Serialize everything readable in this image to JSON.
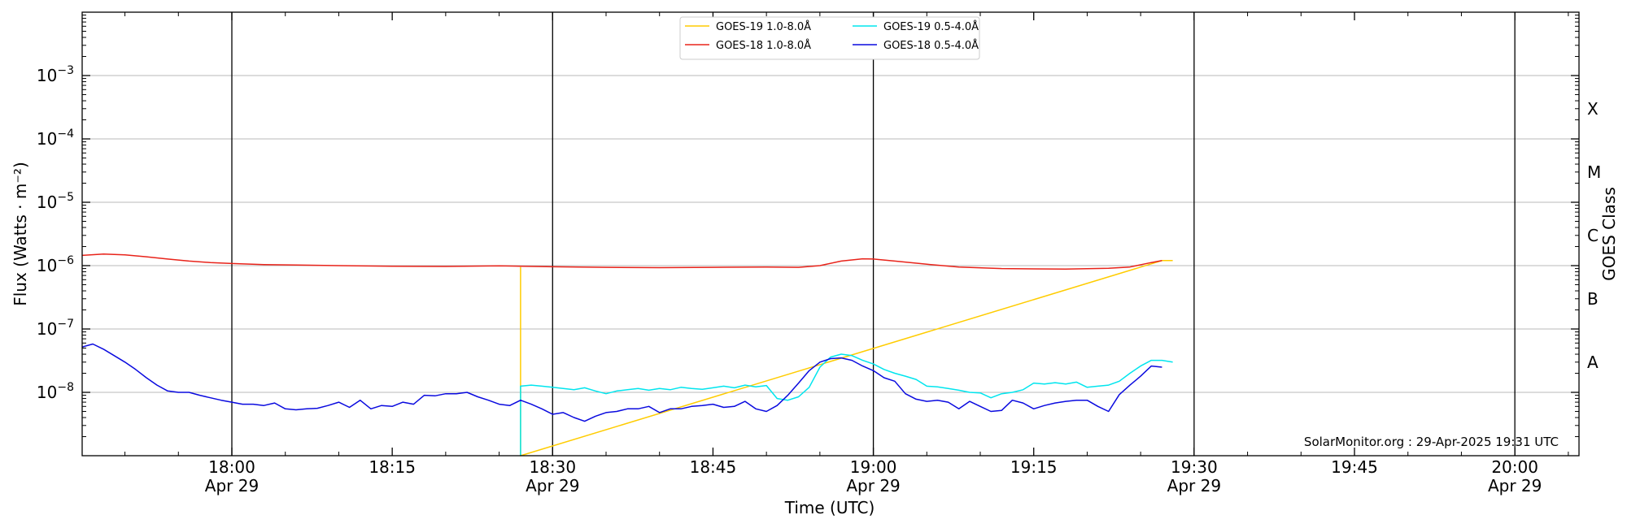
{
  "chart_data": {
    "type": "line",
    "xlabel": "Time (UTC)",
    "ylabel": "Flux (Watts · m⁻²)",
    "ylabel_right": "GOES Class",
    "y_scale": "log",
    "ylim": [
      1e-09,
      0.01
    ],
    "xlim": [
      "2025-04-29T17:46",
      "2025-04-29T20:06"
    ],
    "x_ticks": [
      {
        "time": "2025-04-29T18:00",
        "label": "18:00",
        "date": "Apr 29",
        "vline": true
      },
      {
        "time": "2025-04-29T18:15",
        "label": "18:15",
        "date": "",
        "vline": false
      },
      {
        "time": "2025-04-29T18:30",
        "label": "18:30",
        "date": "Apr 29",
        "vline": true
      },
      {
        "time": "2025-04-29T18:45",
        "label": "18:45",
        "date": "",
        "vline": false
      },
      {
        "time": "2025-04-29T19:00",
        "label": "19:00",
        "date": "Apr 29",
        "vline": true
      },
      {
        "time": "2025-04-29T19:15",
        "label": "19:15",
        "date": "",
        "vline": false
      },
      {
        "time": "2025-04-29T19:30",
        "label": "19:30",
        "date": "Apr 29",
        "vline": true
      },
      {
        "time": "2025-04-29T19:45",
        "label": "19:45",
        "date": "",
        "vline": false
      },
      {
        "time": "2025-04-29T20:00",
        "label": "20:00",
        "date": "Apr 29",
        "vline": true
      }
    ],
    "y_ticks": [
      {
        "exp": -8,
        "label": "10",
        "sup": "−8"
      },
      {
        "exp": -7,
        "label": "10",
        "sup": "−7"
      },
      {
        "exp": -6,
        "label": "10",
        "sup": "−6"
      },
      {
        "exp": -5,
        "label": "10",
        "sup": "−5"
      },
      {
        "exp": -4,
        "label": "10",
        "sup": "−4"
      },
      {
        "exp": -3,
        "label": "10",
        "sup": "−3"
      }
    ],
    "goes_classes": [
      {
        "label": "A",
        "at": 3e-08
      },
      {
        "label": "B",
        "at": 3e-07
      },
      {
        "label": "C",
        "at": 3e-06
      },
      {
        "label": "M",
        "at": 3e-05
      },
      {
        "label": "X",
        "at": 0.0003
      }
    ],
    "grid": "horizontal at decades",
    "legend_position": "top-center",
    "legend": [
      "GOES-19 1.0-8.0Å",
      "GOES-18 1.0-8.0Å",
      "GOES-19 0.5-4.0Å",
      "GOES-18 0.5-4.0Å"
    ],
    "annotation": "SolarMonitor.org : 29-Apr-2025 19:31 UTC",
    "series": [
      {
        "name": "GOES-19 1.0-8.0Å",
        "color": "#ffcc00",
        "points": [
          [
            "18:27",
            9.5e-07
          ],
          [
            "18:27",
            1e-09
          ],
          [
            "19:27",
            1.2e-06
          ],
          [
            "19:28",
            1.2e-06
          ]
        ]
      },
      {
        "name": "GOES-18 1.0-8.0Å",
        "color": "#e8231a",
        "points": [
          [
            "17:46",
            1.45e-06
          ],
          [
            "17:48",
            1.52e-06
          ],
          [
            "17:50",
            1.48e-06
          ],
          [
            "17:52",
            1.38e-06
          ],
          [
            "17:54",
            1.27e-06
          ],
          [
            "17:56",
            1.18e-06
          ],
          [
            "17:58",
            1.12e-06
          ],
          [
            "18:00",
            1.08e-06
          ],
          [
            "18:03",
            1.04e-06
          ],
          [
            "18:06",
            1.02e-06
          ],
          [
            "18:10",
            1e-06
          ],
          [
            "18:15",
            9.8e-07
          ],
          [
            "18:20",
            9.7e-07
          ],
          [
            "18:25",
            9.9e-07
          ],
          [
            "18:30",
            9.6e-07
          ],
          [
            "18:35",
            9.4e-07
          ],
          [
            "18:40",
            9.3e-07
          ],
          [
            "18:45",
            9.4e-07
          ],
          [
            "18:50",
            9.5e-07
          ],
          [
            "18:53",
            9.4e-07
          ],
          [
            "18:55",
            1e-06
          ],
          [
            "18:57",
            1.18e-06
          ],
          [
            "18:59",
            1.28e-06
          ],
          [
            "19:00",
            1.27e-06
          ],
          [
            "19:02",
            1.18e-06
          ],
          [
            "19:05",
            1.05e-06
          ],
          [
            "19:08",
            9.5e-07
          ],
          [
            "19:12",
            9e-07
          ],
          [
            "19:18",
            8.8e-07
          ],
          [
            "19:22",
            9.1e-07
          ],
          [
            "19:24",
            9.5e-07
          ],
          [
            "19:26",
            1.12e-06
          ],
          [
            "19:27",
            1.2e-06
          ]
        ]
      },
      {
        "name": "GOES-19 0.5-4.0Å",
        "color": "#00e5ee",
        "points": [
          [
            "18:27",
            1e-09
          ],
          [
            "18:27",
            1.25e-08
          ],
          [
            "18:28",
            1.3e-08
          ],
          [
            "18:29",
            1.25e-08
          ],
          [
            "18:30",
            1.2e-08
          ],
          [
            "18:31",
            1.15e-08
          ],
          [
            "18:32",
            1.1e-08
          ],
          [
            "18:33",
            1.18e-08
          ],
          [
            "18:34",
            1.05e-08
          ],
          [
            "18:35",
            9.5e-09
          ],
          [
            "18:36",
            1.05e-08
          ],
          [
            "18:37",
            1.1e-08
          ],
          [
            "18:38",
            1.15e-08
          ],
          [
            "18:39",
            1.08e-08
          ],
          [
            "18:40",
            1.15e-08
          ],
          [
            "18:41",
            1.1e-08
          ],
          [
            "18:42",
            1.2e-08
          ],
          [
            "18:43",
            1.15e-08
          ],
          [
            "18:44",
            1.12e-08
          ],
          [
            "18:45",
            1.18e-08
          ],
          [
            "18:46",
            1.25e-08
          ],
          [
            "18:47",
            1.18e-08
          ],
          [
            "18:48",
            1.3e-08
          ],
          [
            "18:49",
            1.22e-08
          ],
          [
            "18:50",
            1.28e-08
          ],
          [
            "18:51",
            8e-09
          ],
          [
            "18:52",
            7.5e-09
          ],
          [
            "18:53",
            8.5e-09
          ],
          [
            "18:54",
            1.2e-08
          ],
          [
            "18:55",
            2.5e-08
          ],
          [
            "18:56",
            3.6e-08
          ],
          [
            "18:57",
            4e-08
          ],
          [
            "18:58",
            3.8e-08
          ],
          [
            "18:59",
            3.2e-08
          ],
          [
            "19:00",
            2.8e-08
          ],
          [
            "19:01",
            2.3e-08
          ],
          [
            "19:02",
            2e-08
          ],
          [
            "19:03",
            1.8e-08
          ],
          [
            "19:04",
            1.6e-08
          ],
          [
            "19:05",
            1.25e-08
          ],
          [
            "19:06",
            1.22e-08
          ],
          [
            "19:07",
            1.15e-08
          ],
          [
            "19:08",
            1.08e-08
          ],
          [
            "19:09",
            1e-08
          ],
          [
            "19:10",
            9.8e-09
          ],
          [
            "19:11",
            8.2e-09
          ],
          [
            "19:12",
            9.5e-09
          ],
          [
            "19:13",
            1e-08
          ],
          [
            "19:14",
            1.1e-08
          ],
          [
            "19:15",
            1.4e-08
          ],
          [
            "19:16",
            1.35e-08
          ],
          [
            "19:17",
            1.42e-08
          ],
          [
            "19:18",
            1.35e-08
          ],
          [
            "19:19",
            1.45e-08
          ],
          [
            "19:20",
            1.2e-08
          ],
          [
            "19:21",
            1.25e-08
          ],
          [
            "19:22",
            1.3e-08
          ],
          [
            "19:23",
            1.5e-08
          ],
          [
            "19:24",
            2e-08
          ],
          [
            "19:25",
            2.6e-08
          ],
          [
            "19:26",
            3.2e-08
          ],
          [
            "19:27",
            3.2e-08
          ],
          [
            "19:28",
            3e-08
          ]
        ]
      },
      {
        "name": "GOES-18 0.5-4.0Å",
        "color": "#0a0adf",
        "points": [
          [
            "17:46",
            5.2e-08
          ],
          [
            "17:47",
            5.8e-08
          ],
          [
            "17:48",
            4.8e-08
          ],
          [
            "17:49",
            3.8e-08
          ],
          [
            "17:50",
            3e-08
          ],
          [
            "17:51",
            2.3e-08
          ],
          [
            "17:52",
            1.7e-08
          ],
          [
            "17:53",
            1.3e-08
          ],
          [
            "17:54",
            1.05e-08
          ],
          [
            "17:55",
            1e-08
          ],
          [
            "17:56",
            1e-08
          ],
          [
            "17:57",
            9e-09
          ],
          [
            "17:58",
            8.2e-09
          ],
          [
            "17:59",
            7.5e-09
          ],
          [
            "18:00",
            7e-09
          ],
          [
            "18:01",
            6.5e-09
          ],
          [
            "18:02",
            6.5e-09
          ],
          [
            "18:03",
            6.2e-09
          ],
          [
            "18:04",
            6.8e-09
          ],
          [
            "18:05",
            5.5e-09
          ],
          [
            "18:06",
            5.3e-09
          ],
          [
            "18:07",
            5.5e-09
          ],
          [
            "18:08",
            5.6e-09
          ],
          [
            "18:09",
            6.2e-09
          ],
          [
            "18:10",
            7e-09
          ],
          [
            "18:11",
            5.8e-09
          ],
          [
            "18:12",
            7.5e-09
          ],
          [
            "18:13",
            5.5e-09
          ],
          [
            "18:14",
            6.2e-09
          ],
          [
            "18:15",
            6e-09
          ],
          [
            "18:16",
            7e-09
          ],
          [
            "18:17",
            6.5e-09
          ],
          [
            "18:18",
            9e-09
          ],
          [
            "18:19",
            8.8e-09
          ],
          [
            "18:20",
            9.5e-09
          ],
          [
            "18:21",
            9.5e-09
          ],
          [
            "18:22",
            1e-08
          ],
          [
            "18:23",
            8.5e-09
          ],
          [
            "18:24",
            7.5e-09
          ],
          [
            "18:25",
            6.5e-09
          ],
          [
            "18:26",
            6.2e-09
          ],
          [
            "18:27",
            7.5e-09
          ],
          [
            "18:28",
            6.5e-09
          ],
          [
            "18:29",
            5.5e-09
          ],
          [
            "18:30",
            4.5e-09
          ],
          [
            "18:31",
            4.8e-09
          ],
          [
            "18:32",
            4e-09
          ],
          [
            "18:33",
            3.5e-09
          ],
          [
            "18:34",
            4.2e-09
          ],
          [
            "18:35",
            4.8e-09
          ],
          [
            "18:36",
            5e-09
          ],
          [
            "18:37",
            5.5e-09
          ],
          [
            "18:38",
            5.5e-09
          ],
          [
            "18:39",
            6e-09
          ],
          [
            "18:40",
            4.8e-09
          ],
          [
            "18:41",
            5.5e-09
          ],
          [
            "18:42",
            5.5e-09
          ],
          [
            "18:43",
            6e-09
          ],
          [
            "18:44",
            6.2e-09
          ],
          [
            "18:45",
            6.5e-09
          ],
          [
            "18:46",
            5.8e-09
          ],
          [
            "18:47",
            6e-09
          ],
          [
            "18:48",
            7.2e-09
          ],
          [
            "18:49",
            5.5e-09
          ],
          [
            "18:50",
            5e-09
          ],
          [
            "18:51",
            6.2e-09
          ],
          [
            "18:52",
            9e-09
          ],
          [
            "18:53",
            1.4e-08
          ],
          [
            "18:54",
            2.2e-08
          ],
          [
            "18:55",
            3e-08
          ],
          [
            "18:56",
            3.4e-08
          ],
          [
            "18:57",
            3.5e-08
          ],
          [
            "18:58",
            3.2e-08
          ],
          [
            "18:59",
            2.6e-08
          ],
          [
            "19:00",
            2.2e-08
          ],
          [
            "19:01",
            1.7e-08
          ],
          [
            "19:02",
            1.5e-08
          ],
          [
            "19:03",
            9.5e-09
          ],
          [
            "19:04",
            7.8e-09
          ],
          [
            "19:05",
            7.2e-09
          ],
          [
            "19:06",
            7.5e-09
          ],
          [
            "19:07",
            7e-09
          ],
          [
            "19:08",
            5.5e-09
          ],
          [
            "19:09",
            7.2e-09
          ],
          [
            "19:10",
            6e-09
          ],
          [
            "19:11",
            5e-09
          ],
          [
            "19:12",
            5.2e-09
          ],
          [
            "19:13",
            7.5e-09
          ],
          [
            "19:14",
            6.8e-09
          ],
          [
            "19:15",
            5.5e-09
          ],
          [
            "19:16",
            6.2e-09
          ],
          [
            "19:17",
            6.8e-09
          ],
          [
            "19:18",
            7.2e-09
          ],
          [
            "19:19",
            7.5e-09
          ],
          [
            "19:20",
            7.5e-09
          ],
          [
            "19:21",
            6e-09
          ],
          [
            "19:22",
            5e-09
          ],
          [
            "19:23",
            9.2e-09
          ],
          [
            "19:24",
            1.3e-08
          ],
          [
            "19:25",
            1.8e-08
          ],
          [
            "19:26",
            2.6e-08
          ],
          [
            "19:27",
            2.5e-08
          ]
        ]
      }
    ]
  }
}
